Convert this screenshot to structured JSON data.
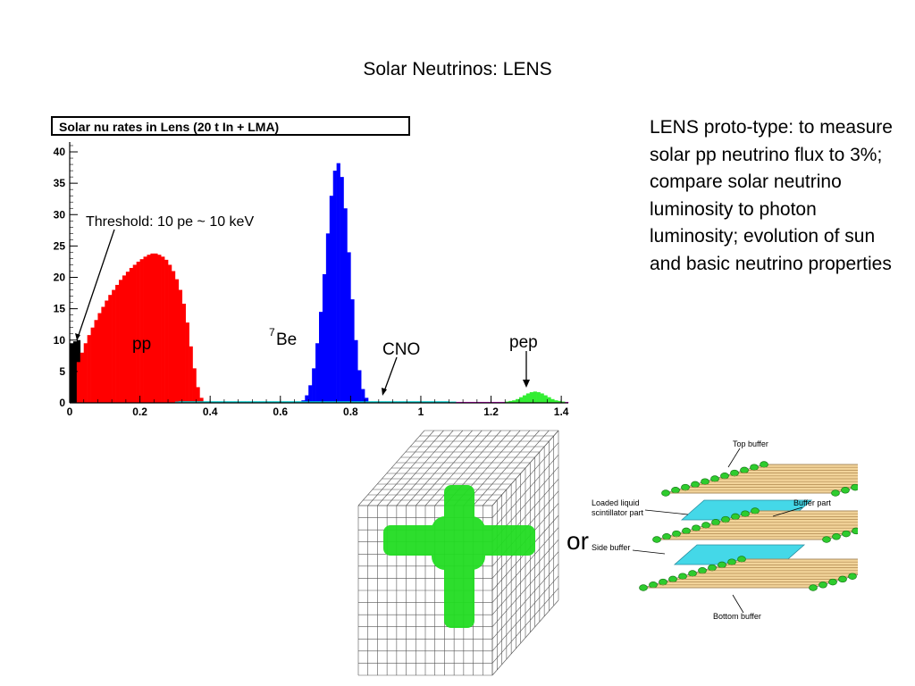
{
  "slide": {
    "title": "Solar Neutrinos: LENS",
    "description": "LENS proto-type: to measure solar pp neutrino flux to 3%; compare solar neutrino luminosity to photon luminosity; evolution of sun and basic neutrino properties",
    "or_label": "or"
  },
  "chart_data": {
    "type": "bar",
    "title": "Solar nu rates in Lens (20 t In + LMA)",
    "xlabel": "",
    "ylabel": "",
    "xlim": [
      0,
      1.42
    ],
    "ylim": [
      0,
      41
    ],
    "x_ticks": [
      "0",
      "0.2",
      "0.4",
      "0.6",
      "0.8",
      "1",
      "1.2",
      "1.4"
    ],
    "y_ticks": [
      "0",
      "5",
      "10",
      "15",
      "20",
      "25",
      "30",
      "35",
      "40"
    ],
    "bin_width": 0.01,
    "series": [
      {
        "name": "threshold",
        "color": "#000000",
        "x_start": 0.0,
        "values": [
          9.5,
          9.8,
          10.0
        ]
      },
      {
        "name": "pp",
        "color": "#ff0000",
        "x_start": 0.02,
        "values": [
          6.5,
          8.0,
          9.5,
          10.8,
          12.0,
          13.2,
          14.3,
          15.3,
          16.3,
          17.2,
          18.0,
          18.8,
          19.6,
          20.3,
          20.9,
          21.5,
          22.0,
          22.5,
          22.9,
          23.3,
          23.6,
          23.8,
          23.8,
          23.6,
          23.3,
          22.8,
          22.0,
          21.0,
          19.7,
          18.0,
          15.8,
          12.8,
          9.0,
          5.5,
          2.5,
          0.8,
          0.2
        ]
      },
      {
        "name": "7Be",
        "color": "#0000ff",
        "x_start": 0.66,
        "values": [
          0.4,
          1.2,
          2.8,
          5.5,
          9.5,
          14.5,
          20.5,
          27.0,
          33.0,
          37.0,
          38.2,
          36.0,
          31.0,
          24.0,
          16.5,
          10.0,
          5.2,
          2.2,
          0.8,
          0.2
        ]
      },
      {
        "name": "CNO",
        "color": "#00cccc",
        "x_start": 0.3,
        "values": [
          0.2,
          0.25,
          0.25,
          0.25,
          0.25,
          0.25,
          0.25,
          0.25,
          0.25,
          0.25,
          0.25,
          0.25,
          0.25,
          0.25,
          0.25,
          0.25,
          0.25,
          0.25,
          0.25,
          0.25,
          0.25,
          0.25,
          0.25,
          0.25,
          0.25,
          0.25,
          0.25,
          0.25,
          0.25,
          0.25,
          0.25,
          0.25,
          0.25,
          0.25,
          0.25,
          0.25,
          0.25,
          0.25,
          0.25,
          0.25,
          0.25,
          0.25,
          0.25,
          0.25,
          0.25,
          0.25,
          0.25,
          0.25,
          0.25,
          0.25,
          0.25,
          0.25,
          0.25,
          0.25,
          0.25,
          0.25,
          0.25,
          0.25,
          0.25,
          0.25,
          0.25,
          0.25,
          0.25,
          0.25,
          0.25,
          0.25,
          0.25,
          0.25,
          0.25,
          0.25,
          0.25,
          0.25,
          0.25,
          0.25,
          0.25,
          0.25,
          0.25,
          0.25,
          0.2,
          0.2
        ]
      },
      {
        "name": "pep (background)",
        "color": "#ff00ff",
        "x_start": 1.1,
        "values": [
          0.15,
          0.15,
          0.15,
          0.15,
          0.15,
          0.15,
          0.15,
          0.15,
          0.15,
          0.15,
          0.15,
          0.15,
          0.15,
          0.15,
          0.15,
          0.15,
          0.15,
          0.15,
          0.15,
          0.15,
          0.15,
          0.15,
          0.15,
          0.15,
          0.15,
          0.15,
          0.15,
          0.15,
          0.15,
          0.15,
          0.15,
          0.15
        ]
      },
      {
        "name": "pep",
        "color": "#33ee33",
        "x_start": 1.24,
        "values": [
          0.2,
          0.3,
          0.4,
          0.6,
          0.9,
          1.2,
          1.5,
          1.7,
          1.8,
          1.7,
          1.5,
          1.2,
          0.9,
          0.6,
          0.4,
          0.3,
          0.2
        ]
      }
    ],
    "annotations": {
      "threshold": "Threshold: 10 pe ~ 10 keV",
      "pp": "pp",
      "be_sup": "7",
      "be": "Be",
      "cno": "CNO",
      "pep": "pep"
    }
  },
  "diagram": {
    "top_buffer": "Top buffer",
    "loaded_liquid": "Loaded liquid",
    "scintillator_part": "scintillator part",
    "buffer_part": "Buffer part",
    "side_buffer": "Side buffer",
    "bottom_buffer": "Bottom buffer"
  }
}
